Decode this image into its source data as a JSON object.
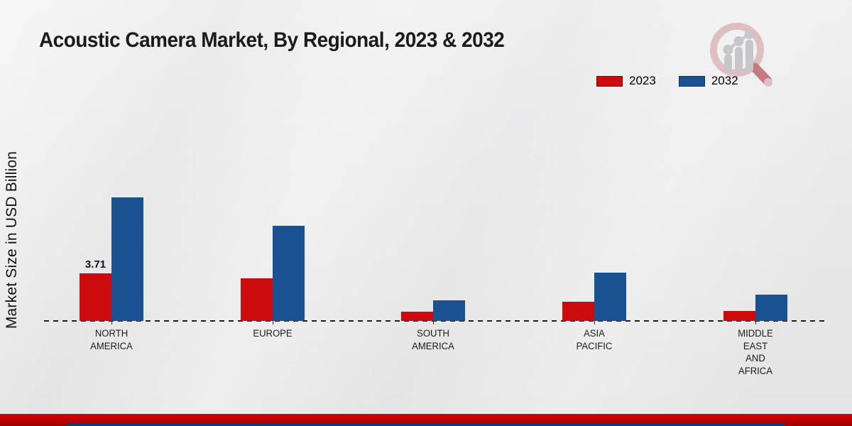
{
  "title": "Acoustic Camera Market, By Regional, 2023 & 2032",
  "y_axis_label": "Market Size in USD Billion",
  "colors": {
    "series_2023": "#cc0b0e",
    "series_2032": "#1a5291",
    "footer_red": "#bb0100",
    "footer_navy": "#203864",
    "background": "#e9e9ea",
    "text": "#1b1b1b"
  },
  "legend": {
    "position": "top-right",
    "items": [
      {
        "label": "2023",
        "color": "#cc0b0e"
      },
      {
        "label": "2032",
        "color": "#1a5291"
      }
    ]
  },
  "logo": {
    "name": "magnifier-bar-chart-logo"
  },
  "chart_data": {
    "type": "bar",
    "title": "Acoustic Camera Market, By Regional, 2023 & 2032",
    "categories": [
      "NORTH\nAMERICA",
      "EUROPE",
      "SOUTH\nAMERICA",
      "ASIA\nPACIFIC",
      "MIDDLE\nEAST\nAND\nAFRICA"
    ],
    "series": [
      {
        "name": "2023",
        "color": "#cc0b0e",
        "values": [
          3.71,
          3.3,
          0.72,
          1.5,
          0.78
        ]
      },
      {
        "name": "2032",
        "color": "#1a5291",
        "values": [
          9.65,
          7.4,
          1.6,
          3.77,
          2.05
        ]
      }
    ],
    "data_labels": [
      {
        "series": "2023",
        "category_index": 0,
        "text": "3.71"
      }
    ],
    "xlabel": "",
    "ylabel": "Market Size in USD Billion",
    "ylim": [
      0,
      10.5
    ],
    "grid": false,
    "y_ticks_visible": false,
    "baseline_style": "dashed",
    "legend_position": "top-right"
  }
}
